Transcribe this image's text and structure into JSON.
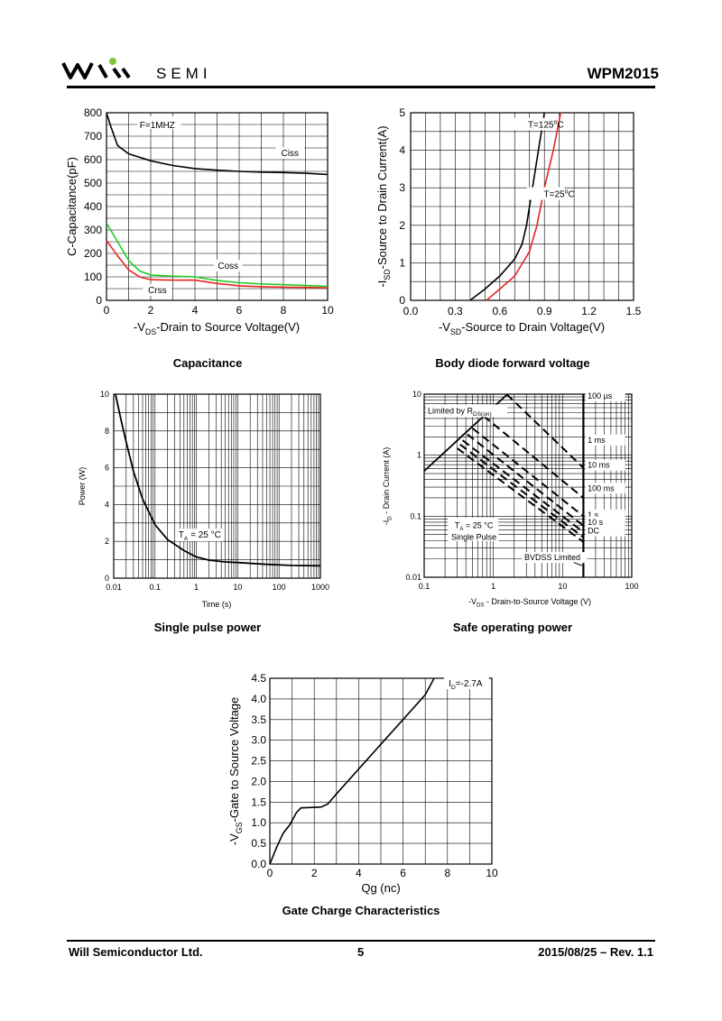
{
  "header": {
    "logo_text": "SEMI",
    "part_number": "WPM2015"
  },
  "footer": {
    "company": "Will Semiconductor Ltd.",
    "page": "5",
    "date_rev": "2015/08/25 – Rev. 1.1"
  },
  "colors": {
    "ink": "#000000",
    "red": "#e8231f",
    "green": "#22cc22",
    "logo_green": "#7cc53a"
  },
  "chart_data": [
    {
      "id": "capacitance",
      "type": "line",
      "caption": "Capacitance",
      "title": "",
      "xlabel_parts": [
        "-V",
        "DS",
        "-Drain to Source Voltage(V)"
      ],
      "ylabel": "C-Capacitance(pF)",
      "xlim": [
        0,
        10
      ],
      "ylim": [
        0,
        800
      ],
      "xticks": [
        0,
        2,
        4,
        6,
        8,
        10
      ],
      "yticks": [
        0,
        100,
        200,
        300,
        400,
        500,
        600,
        700,
        800
      ],
      "annotations": [
        "F=1MHZ"
      ],
      "series": [
        {
          "name": "Ciss",
          "color": "#000000",
          "points": [
            [
              0,
              800
            ],
            [
              0.2,
              740
            ],
            [
              0.5,
              660
            ],
            [
              1,
              625
            ],
            [
              2,
              595
            ],
            [
              3,
              575
            ],
            [
              4,
              562
            ],
            [
              5,
              555
            ],
            [
              6,
              550
            ],
            [
              7,
              547
            ],
            [
              8,
              545
            ],
            [
              9,
              542
            ],
            [
              10,
              537
            ]
          ]
        },
        {
          "name": "Coss",
          "color": "#22cc22",
          "points": [
            [
              0,
              330
            ],
            [
              0.5,
              250
            ],
            [
              1,
              170
            ],
            [
              1.5,
              125
            ],
            [
              2,
              108
            ],
            [
              3,
              103
            ],
            [
              4,
              100
            ],
            [
              5,
              85
            ],
            [
              6,
              75
            ],
            [
              7,
              70
            ],
            [
              8,
              67
            ],
            [
              9,
              63
            ],
            [
              10,
              60
            ]
          ]
        },
        {
          "name": "Crss",
          "color": "#e8231f",
          "points": [
            [
              0,
              255
            ],
            [
              0.5,
              190
            ],
            [
              1,
              130
            ],
            [
              1.5,
              100
            ],
            [
              2,
              88
            ],
            [
              3,
              86
            ],
            [
              4,
              86
            ],
            [
              5,
              72
            ],
            [
              6,
              62
            ],
            [
              7,
              58
            ],
            [
              8,
              56
            ],
            [
              9,
              55
            ],
            [
              10,
              53
            ]
          ]
        }
      ]
    },
    {
      "id": "body-diode",
      "type": "line",
      "caption": "Body diode forward voltage",
      "xlabel_parts": [
        "-V",
        "SD",
        "-Source to Drain Voltage(V)"
      ],
      "ylabel_parts": [
        "-I",
        "SD",
        "-Source to Drain Current(A)"
      ],
      "xlim": [
        0,
        1.5
      ],
      "ylim": [
        0,
        5
      ],
      "xticks": [
        "0.0",
        "0.3",
        "0.6",
        "0.9",
        "1.2",
        "1.5"
      ],
      "yticks": [
        0,
        1,
        2,
        3,
        4,
        5
      ],
      "series": [
        {
          "name": "T=125°C",
          "label_main": "T=125",
          "label_sup": "o",
          "label_tail": "C",
          "color": "#000000",
          "points": [
            [
              0.4,
              0
            ],
            [
              0.5,
              0.3
            ],
            [
              0.6,
              0.65
            ],
            [
              0.7,
              1.1
            ],
            [
              0.75,
              1.5
            ],
            [
              0.78,
              2
            ],
            [
              0.82,
              3
            ],
            [
              0.86,
              4
            ],
            [
              0.9,
              5
            ]
          ]
        },
        {
          "name": "T=25°C",
          "label_main": "T=25",
          "label_sup": "o",
          "label_tail": "C",
          "color": "#e8231f",
          "points": [
            [
              0.51,
              0
            ],
            [
              0.6,
              0.3
            ],
            [
              0.7,
              0.65
            ],
            [
              0.8,
              1.3
            ],
            [
              0.85,
              2
            ],
            [
              0.9,
              3
            ],
            [
              0.96,
              4
            ],
            [
              1.01,
              5
            ]
          ]
        }
      ]
    },
    {
      "id": "single-pulse",
      "type": "line",
      "caption": "Single pulse power",
      "xlabel": "Time (s)",
      "ylabel": "Power (W)",
      "xscale": "log",
      "xlim": [
        0.01,
        1000
      ],
      "ylim": [
        0,
        10
      ],
      "xticks": [
        "0.01",
        "0.1",
        "1",
        "10",
        "100",
        "1000"
      ],
      "yticks": [
        0,
        2,
        4,
        6,
        8,
        10
      ],
      "annotation_parts": [
        "T",
        "A",
        " = 25 °C"
      ],
      "series": [
        {
          "name": "Power",
          "color": "#000000",
          "points": [
            [
              0.011,
              10
            ],
            [
              0.015,
              8.6
            ],
            [
              0.02,
              7.4
            ],
            [
              0.03,
              5.8
            ],
            [
              0.05,
              4.3
            ],
            [
              0.1,
              2.9
            ],
            [
              0.2,
              2.1
            ],
            [
              0.5,
              1.5
            ],
            [
              1,
              1.15
            ],
            [
              2,
              0.98
            ],
            [
              5,
              0.88
            ],
            [
              10,
              0.85
            ],
            [
              50,
              0.75
            ],
            [
              200,
              0.69
            ],
            [
              1000,
              0.67
            ]
          ]
        }
      ]
    },
    {
      "id": "safe-operating",
      "type": "line",
      "caption": "Safe operating power",
      "xlabel_parts": [
        "-V",
        "DS",
        " - Drain-to-Source Voltage (V)"
      ],
      "ylabel_parts": [
        "-I",
        "D",
        " - Drain Current (A)"
      ],
      "xscale": "log",
      "yscale": "log",
      "xlim": [
        0.1,
        100
      ],
      "ylim": [
        0.01,
        10
      ],
      "xticks": [
        "0.1",
        "1",
        "10",
        "100"
      ],
      "yticks": [
        "0.01",
        "0.1",
        "1",
        "10"
      ],
      "rds_label_parts": [
        "Limited by R",
        "DS(on)"
      ],
      "ta_label_parts": [
        "T",
        "A",
        " = 25 °C"
      ],
      "pulse_label": "Single Pulse",
      "bvdss_label": "BVDSS Limited",
      "bvdss_v": 20,
      "series": [
        {
          "name": "100 µs",
          "points": [
            [
              1.55,
              10
            ],
            [
              20,
              0.62
            ]
          ]
        },
        {
          "name": "1 ms",
          "points": [
            [
              0.72,
              4.4
            ],
            [
              20,
              0.2
            ]
          ]
        },
        {
          "name": "10 ms",
          "points": [
            [
              0.5,
              2.75
            ],
            [
              20,
              0.1
            ]
          ]
        },
        {
          "name": "100 ms",
          "points": [
            [
              0.42,
              2.2
            ],
            [
              20,
              0.07
            ]
          ]
        },
        {
          "name": "1 s",
          "points": [
            [
              0.36,
              1.75
            ],
            [
              20,
              0.055
            ]
          ]
        },
        {
          "name": "10 s",
          "points": [
            [
              0.33,
              1.5
            ],
            [
              20,
              0.045
            ]
          ]
        },
        {
          "name": "DC",
          "points": [
            [
              0.3,
              1.3
            ],
            [
              20,
              0.038
            ]
          ]
        }
      ]
    },
    {
      "id": "gate-charge",
      "type": "line",
      "caption": "Gate Charge Characteristics",
      "xlabel": "Qg (nc)",
      "ylabel_parts": [
        "-V",
        "GS",
        "-Gate to Source Voltage"
      ],
      "xlim": [
        0,
        10
      ],
      "ylim": [
        0,
        4.5
      ],
      "xticks": [
        0,
        2,
        4,
        6,
        8,
        10
      ],
      "yticks": [
        "0.0",
        "0.5",
        "1.0",
        "1.5",
        "2.0",
        "2.5",
        "3.0",
        "3.5",
        "4.0",
        "4.5"
      ],
      "annotation_parts": [
        "I",
        "D",
        "=-2.7A"
      ],
      "series": [
        {
          "name": "VGS",
          "points": [
            [
              0,
              0
            ],
            [
              0.3,
              0.4
            ],
            [
              0.6,
              0.75
            ],
            [
              0.9,
              0.95
            ],
            [
              1.2,
              1.25
            ],
            [
              1.4,
              1.36
            ],
            [
              1.8,
              1.37
            ],
            [
              2.3,
              1.38
            ],
            [
              2.6,
              1.45
            ],
            [
              3.0,
              1.7
            ],
            [
              4.0,
              2.3
            ],
            [
              5.0,
              2.9
            ],
            [
              6.0,
              3.5
            ],
            [
              7.0,
              4.1
            ],
            [
              7.4,
              4.5
            ]
          ]
        }
      ]
    }
  ]
}
